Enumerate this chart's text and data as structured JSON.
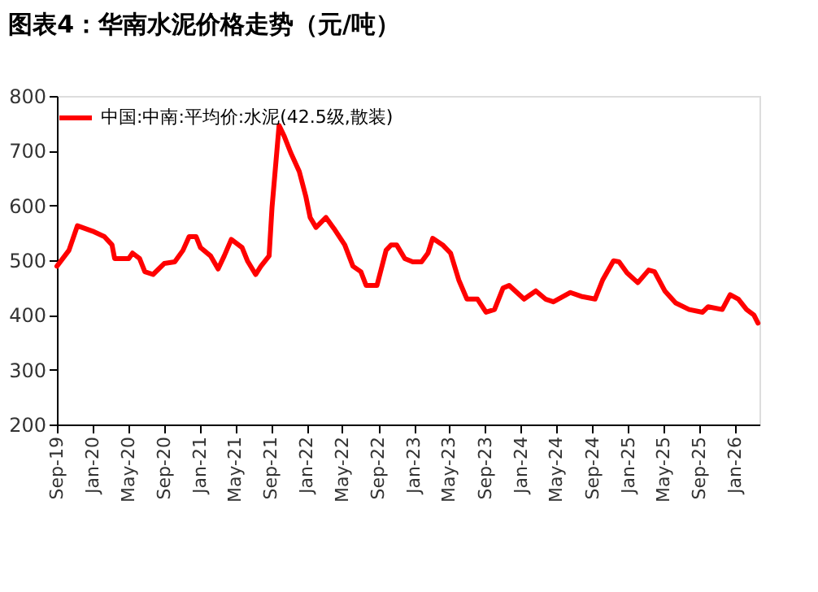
{
  "chart_data": {
    "type": "line",
    "title": "图表4：华南水泥价格走势（元/吨）",
    "x": [
      "2019-09-01",
      "2019-10-12",
      "2019-11-10",
      "2020-01-01",
      "2020-02-10",
      "2020-03-07",
      "2020-03-16",
      "2020-05-03",
      "2020-05-16",
      "2020-06-09",
      "2020-06-27",
      "2020-07-25",
      "2020-09-01",
      "2020-10-07",
      "2020-11-04",
      "2020-11-25",
      "2020-12-19",
      "2021-01-03",
      "2021-02-06",
      "2021-03-04",
      "2021-03-25",
      "2021-04-18",
      "2021-05-25",
      "2021-06-12",
      "2021-07-10",
      "2021-07-28",
      "2021-08-25",
      "2021-09-04",
      "2021-09-28",
      "2021-10-16",
      "2021-11-07",
      "2021-12-06",
      "2021-12-28",
      "2022-01-12",
      "2022-02-01",
      "2022-03-07",
      "2022-04-03",
      "2022-05-10",
      "2022-06-07",
      "2022-07-04",
      "2022-07-22",
      "2022-08-28",
      "2022-09-28",
      "2022-10-15",
      "2022-11-03",
      "2022-12-01",
      "2022-12-28",
      "2023-01-27",
      "2023-02-18",
      "2023-03-06",
      "2023-04-09",
      "2023-05-06",
      "2023-06-03",
      "2023-07-01",
      "2023-08-06",
      "2023-09-04",
      "2023-10-03",
      "2023-11-01",
      "2023-11-22",
      "2024-01-12",
      "2024-02-21",
      "2024-03-25",
      "2024-04-21",
      "2024-06-18",
      "2024-07-25",
      "2024-09-10",
      "2024-10-06",
      "2024-11-12",
      "2024-12-01",
      "2024-12-28",
      "2025-02-03",
      "2025-03-12",
      "2025-04-01",
      "2025-05-06",
      "2025-06-12",
      "2025-07-28",
      "2025-09-12",
      "2025-10-01",
      "2025-11-18",
      "2025-12-15",
      "2026-01-12",
      "2026-02-09",
      "2026-03-06",
      "2026-03-20"
    ],
    "series": [
      {
        "name": "中国:中南:平均价:水泥(42.5级,散装)",
        "color": "#ff0000",
        "values": [
          489,
          518,
          563,
          553,
          543,
          528,
          503,
          503,
          513,
          503,
          479,
          474,
          494,
          497,
          518,
          543,
          543,
          523,
          508,
          484,
          508,
          538,
          523,
          499,
          474,
          489,
          508,
          597,
          746,
          726,
          696,
          662,
          617,
          578,
          560,
          578,
          558,
          528,
          489,
          479,
          454,
          454,
          518,
          528,
          528,
          503,
          497,
          497,
          513,
          540,
          528,
          513,
          464,
          429,
          429,
          405,
          410,
          449,
          454,
          429,
          444,
          429,
          424,
          441,
          434,
          429,
          464,
          499,
          497,
          477,
          459,
          482,
          479,
          444,
          422,
          410,
          405,
          415,
          410,
          437,
          429,
          410,
          400,
          385
        ]
      }
    ],
    "xlim": [
      "2019-09-01",
      "2026-03-25"
    ],
    "xticks": [
      {
        "value": "2019-09-01",
        "label": "Sep-19"
      },
      {
        "value": "2020-01-01",
        "label": "Jan-20"
      },
      {
        "value": "2020-05-01",
        "label": "May-20"
      },
      {
        "value": "2020-09-01",
        "label": "Sep-20"
      },
      {
        "value": "2021-01-01",
        "label": "Jan-21"
      },
      {
        "value": "2021-05-01",
        "label": "May-21"
      },
      {
        "value": "2021-09-01",
        "label": "Sep-21"
      },
      {
        "value": "2022-01-01",
        "label": "Jan-22"
      },
      {
        "value": "2022-05-01",
        "label": "May-22"
      },
      {
        "value": "2022-09-01",
        "label": "Sep-22"
      },
      {
        "value": "2023-01-01",
        "label": "Jan-23"
      },
      {
        "value": "2023-05-01",
        "label": "May-23"
      },
      {
        "value": "2023-09-01",
        "label": "Sep-23"
      },
      {
        "value": "2024-01-01",
        "label": "Jan-24"
      },
      {
        "value": "2024-05-01",
        "label": "May-24"
      },
      {
        "value": "2024-09-01",
        "label": "Sep-24"
      },
      {
        "value": "2025-01-01",
        "label": "Jan-25"
      },
      {
        "value": "2025-05-01",
        "label": "May-25"
      },
      {
        "value": "2025-09-01",
        "label": "Sep-25"
      },
      {
        "value": "2026-01-01",
        "label": "Jan-26"
      }
    ],
    "ylim": [
      200,
      800
    ],
    "yticks": [
      200,
      300,
      400,
      500,
      600,
      700,
      800
    ],
    "grid": false,
    "legend": "top",
    "marker": "none",
    "line_style": "solid"
  }
}
